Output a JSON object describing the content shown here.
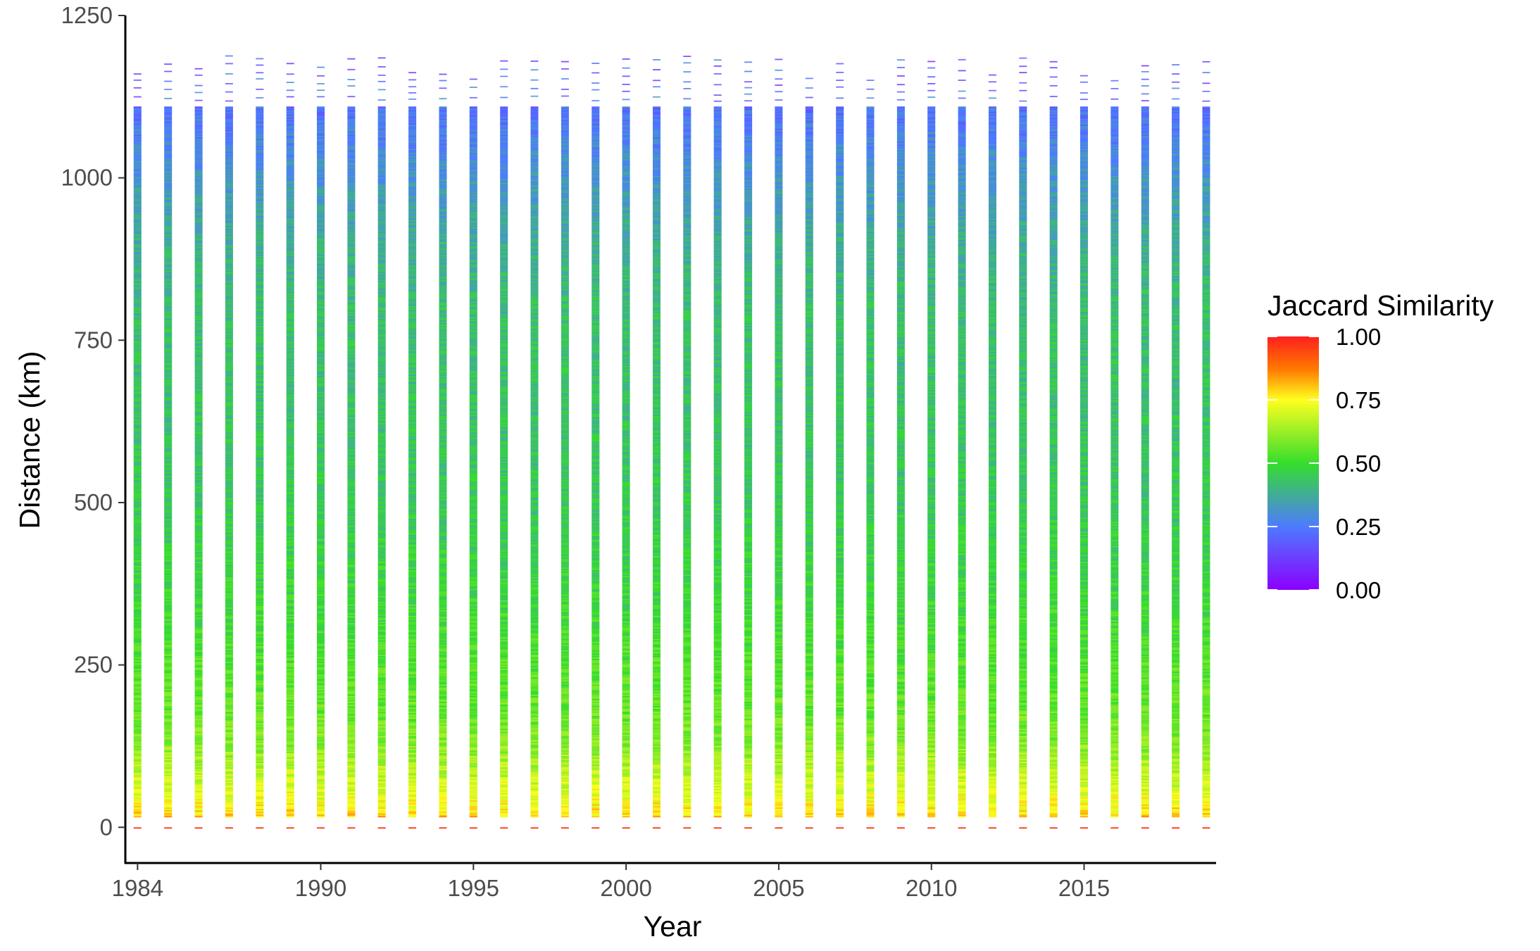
{
  "chart_data": {
    "type": "heatmap",
    "title": "",
    "xlabel": "Year",
    "ylabel": "Distance (km)",
    "xlim": [
      1983.6,
      2019.3
    ],
    "ylim": [
      -55,
      1250
    ],
    "x_ticks": [
      1984,
      1990,
      1995,
      2000,
      2005,
      2010,
      2015
    ],
    "x_tick_labels": [
      "1984",
      "1990",
      "1995",
      "2000",
      "2005",
      "2010",
      "2015"
    ],
    "y_ticks": [
      0,
      250,
      500,
      750,
      1000,
      1250
    ],
    "y_tick_labels": [
      "0",
      "250",
      "500",
      "750",
      "1000",
      "1250"
    ],
    "years": [
      1984,
      1985,
      1986,
      1987,
      1988,
      1989,
      1990,
      1991,
      1992,
      1993,
      1994,
      1995,
      1996,
      1997,
      1998,
      1999,
      2000,
      2001,
      2002,
      2003,
      2004,
      2005,
      2006,
      2007,
      2008,
      2009,
      2010,
      2011,
      2012,
      2013,
      2014,
      2015,
      2016,
      2017,
      2018,
      2019
    ],
    "max_distance_km": [
      1165,
      1185,
      1185,
      1190,
      1188,
      1185,
      1183,
      1188,
      1190,
      1163,
      1163,
      1165,
      1190,
      1188,
      1186,
      1187,
      1190,
      1186,
      1188,
      1190,
      1188,
      1186,
      1163,
      1187,
      1163,
      1188,
      1192,
      1187,
      1163,
      1190,
      1190,
      1163,
      1163,
      1187,
      1188,
      1188
    ],
    "distance_bins_km": [
      0,
      20,
      50,
      90,
      130,
      180,
      250,
      350,
      500,
      650,
      800,
      900,
      960,
      1020,
      1060,
      1100,
      1150,
      1200
    ],
    "mean_similarity_by_distance": [
      0.95,
      0.78,
      0.72,
      0.66,
      0.6,
      0.56,
      0.53,
      0.49,
      0.45,
      0.43,
      0.42,
      0.38,
      0.34,
      0.3,
      0.27,
      0.24,
      0.2,
      0.18
    ],
    "legend": {
      "title": "Jaccard Similarity",
      "position": "right",
      "min": 0,
      "max": 1,
      "ticks": [
        0.0,
        0.25,
        0.5,
        0.75,
        1.0
      ],
      "tick_labels": [
        "0.00",
        "0.25",
        "0.50",
        "0.75",
        "1.00"
      ],
      "colors": [
        "#8B00FF",
        "#4D7BFF",
        "#35DE2C",
        "#FFFF1F",
        "#FF7A00",
        "#FF1F1F"
      ]
    },
    "grid": false
  }
}
